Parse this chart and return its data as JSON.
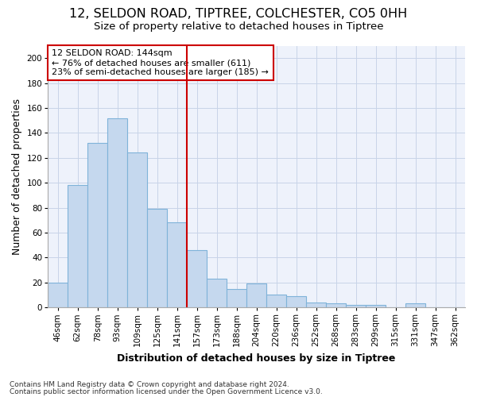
{
  "title1": "12, SELDON ROAD, TIPTREE, COLCHESTER, CO5 0HH",
  "title2": "Size of property relative to detached houses in Tiptree",
  "xlabel": "Distribution of detached houses by size in Tiptree",
  "ylabel": "Number of detached properties",
  "categories": [
    "46sqm",
    "62sqm",
    "78sqm",
    "93sqm",
    "109sqm",
    "125sqm",
    "141sqm",
    "157sqm",
    "173sqm",
    "188sqm",
    "204sqm",
    "220sqm",
    "236sqm",
    "252sqm",
    "268sqm",
    "283sqm",
    "299sqm",
    "315sqm",
    "331sqm",
    "347sqm",
    "362sqm"
  ],
  "values": [
    20,
    98,
    132,
    152,
    124,
    79,
    68,
    46,
    23,
    15,
    19,
    10,
    9,
    4,
    3,
    2,
    2,
    0,
    3,
    0,
    0
  ],
  "bar_color": "#c5d8ee",
  "bar_edge_color": "#7fb3d9",
  "vline_index": 6.5,
  "annotation_lines": [
    "12 SELDON ROAD: 144sqm",
    "← 76% of detached houses are smaller (611)",
    "23% of semi-detached houses are larger (185) →"
  ],
  "annotation_box_color": "#ffffff",
  "annotation_box_edge": "#cc0000",
  "vline_color": "#cc0000",
  "ylim": [
    0,
    210
  ],
  "yticks": [
    0,
    20,
    40,
    60,
    80,
    100,
    120,
    140,
    160,
    180,
    200
  ],
  "grid_color": "#c8d4e8",
  "bg_color": "#eef2fb",
  "footer1": "Contains HM Land Registry data © Crown copyright and database right 2024.",
  "footer2": "Contains public sector information licensed under the Open Government Licence v3.0.",
  "title1_fontsize": 11.5,
  "title2_fontsize": 9.5,
  "axis_label_fontsize": 9,
  "tick_fontsize": 7.5,
  "annotation_fontsize": 8,
  "footer_fontsize": 6.5
}
